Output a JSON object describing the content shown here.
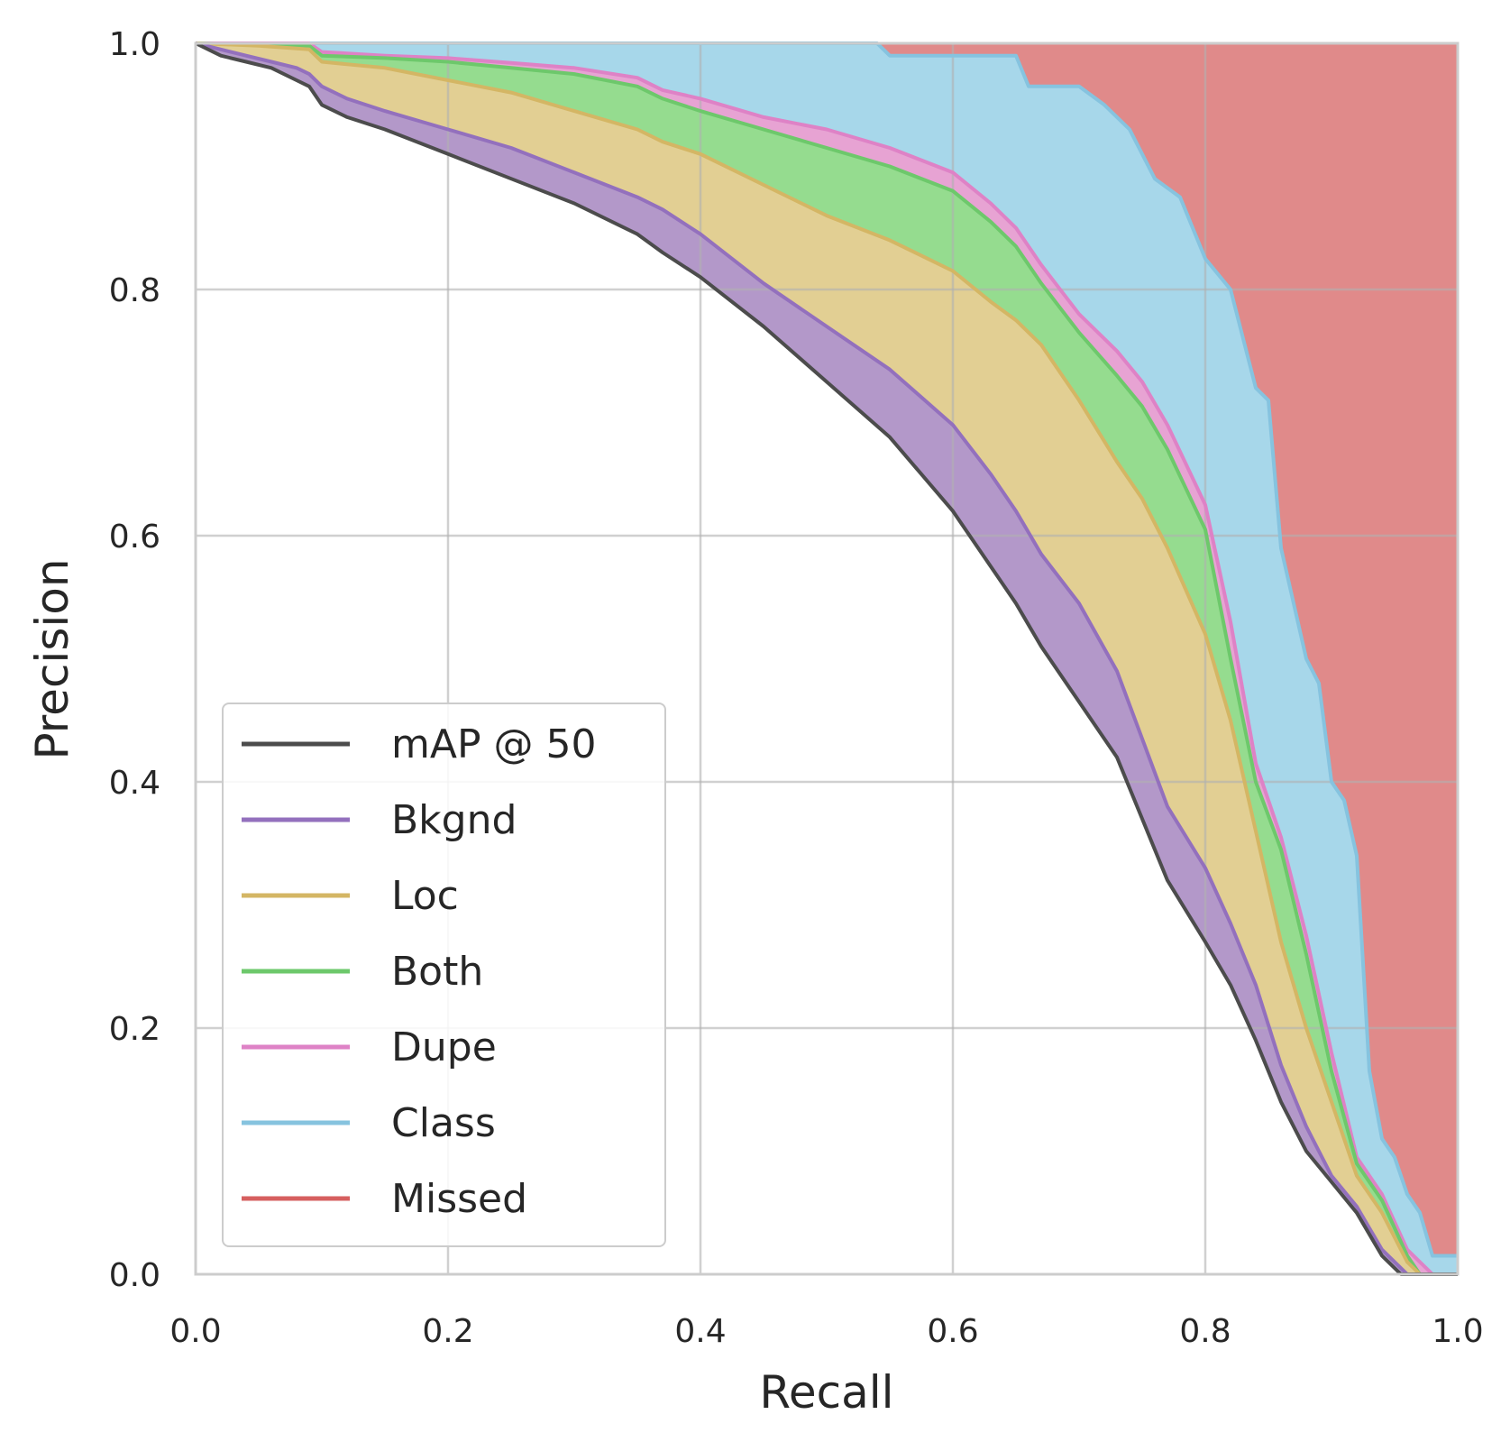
{
  "chart_data": {
    "type": "area",
    "title": "",
    "xlabel": "Recall",
    "ylabel": "Precision",
    "xlim": [
      0.0,
      1.0
    ],
    "ylim": [
      0.0,
      1.0
    ],
    "xticks": [
      "0.0",
      "0.2",
      "0.4",
      "0.6",
      "0.8",
      "1.0"
    ],
    "yticks": [
      "0.0",
      "0.2",
      "0.4",
      "0.6",
      "0.8",
      "1.0"
    ],
    "grid": true,
    "legend_position": "lower-left",
    "stacking": "cumulative",
    "series": [
      {
        "name": "mAP @ 50",
        "color": "#4c4c4c",
        "fill": null,
        "points": [
          [
            0.0,
            1.0
          ],
          [
            0.02,
            0.99
          ],
          [
            0.04,
            0.985
          ],
          [
            0.06,
            0.98
          ],
          [
            0.08,
            0.97
          ],
          [
            0.09,
            0.965
          ],
          [
            0.1,
            0.95
          ],
          [
            0.12,
            0.94
          ],
          [
            0.15,
            0.93
          ],
          [
            0.2,
            0.91
          ],
          [
            0.25,
            0.89
          ],
          [
            0.3,
            0.87
          ],
          [
            0.35,
            0.845
          ],
          [
            0.37,
            0.83
          ],
          [
            0.4,
            0.81
          ],
          [
            0.45,
            0.77
          ],
          [
            0.5,
            0.725
          ],
          [
            0.55,
            0.68
          ],
          [
            0.6,
            0.62
          ],
          [
            0.63,
            0.575
          ],
          [
            0.65,
            0.545
          ],
          [
            0.67,
            0.51
          ],
          [
            0.7,
            0.465
          ],
          [
            0.73,
            0.42
          ],
          [
            0.75,
            0.37
          ],
          [
            0.77,
            0.32
          ],
          [
            0.8,
            0.27
          ],
          [
            0.82,
            0.235
          ],
          [
            0.84,
            0.19
          ],
          [
            0.86,
            0.14
          ],
          [
            0.88,
            0.1
          ],
          [
            0.9,
            0.075
          ],
          [
            0.92,
            0.05
          ],
          [
            0.94,
            0.015
          ],
          [
            0.955,
            0.0
          ],
          [
            1.0,
            0.0
          ]
        ]
      },
      {
        "name": "Bkgnd",
        "color": "#9370bd",
        "fill": "#b398c9",
        "points": [
          [
            0.0,
            1.0
          ],
          [
            0.02,
            0.995
          ],
          [
            0.04,
            0.99
          ],
          [
            0.06,
            0.985
          ],
          [
            0.08,
            0.98
          ],
          [
            0.09,
            0.975
          ],
          [
            0.1,
            0.965
          ],
          [
            0.12,
            0.955
          ],
          [
            0.15,
            0.945
          ],
          [
            0.2,
            0.93
          ],
          [
            0.25,
            0.915
          ],
          [
            0.3,
            0.895
          ],
          [
            0.35,
            0.875
          ],
          [
            0.37,
            0.865
          ],
          [
            0.4,
            0.845
          ],
          [
            0.45,
            0.805
          ],
          [
            0.5,
            0.77
          ],
          [
            0.55,
            0.735
          ],
          [
            0.6,
            0.69
          ],
          [
            0.63,
            0.65
          ],
          [
            0.65,
            0.62
          ],
          [
            0.67,
            0.585
          ],
          [
            0.7,
            0.545
          ],
          [
            0.73,
            0.49
          ],
          [
            0.75,
            0.435
          ],
          [
            0.77,
            0.38
          ],
          [
            0.8,
            0.33
          ],
          [
            0.82,
            0.285
          ],
          [
            0.84,
            0.235
          ],
          [
            0.86,
            0.17
          ],
          [
            0.88,
            0.12
          ],
          [
            0.9,
            0.08
          ],
          [
            0.92,
            0.055
          ],
          [
            0.94,
            0.02
          ],
          [
            0.96,
            0.0
          ],
          [
            1.0,
            0.0
          ]
        ]
      },
      {
        "name": "Loc",
        "color": "#d4b664",
        "fill": "#e2cf93",
        "points": [
          [
            0.0,
            1.0
          ],
          [
            0.05,
            0.998
          ],
          [
            0.09,
            0.995
          ],
          [
            0.1,
            0.985
          ],
          [
            0.15,
            0.98
          ],
          [
            0.2,
            0.97
          ],
          [
            0.25,
            0.96
          ],
          [
            0.3,
            0.945
          ],
          [
            0.35,
            0.93
          ],
          [
            0.37,
            0.92
          ],
          [
            0.4,
            0.91
          ],
          [
            0.45,
            0.885
          ],
          [
            0.5,
            0.86
          ],
          [
            0.55,
            0.84
          ],
          [
            0.6,
            0.815
          ],
          [
            0.63,
            0.79
          ],
          [
            0.65,
            0.775
          ],
          [
            0.67,
            0.755
          ],
          [
            0.7,
            0.71
          ],
          [
            0.73,
            0.66
          ],
          [
            0.75,
            0.63
          ],
          [
            0.77,
            0.59
          ],
          [
            0.8,
            0.52
          ],
          [
            0.82,
            0.45
          ],
          [
            0.84,
            0.36
          ],
          [
            0.86,
            0.27
          ],
          [
            0.88,
            0.2
          ],
          [
            0.9,
            0.14
          ],
          [
            0.92,
            0.08
          ],
          [
            0.94,
            0.05
          ],
          [
            0.96,
            0.01
          ],
          [
            0.97,
            0.0
          ],
          [
            1.0,
            0.0
          ]
        ]
      },
      {
        "name": "Both",
        "color": "#6dc86b",
        "fill": "#95dc8f",
        "points": [
          [
            0.0,
            1.0
          ],
          [
            0.09,
            0.998
          ],
          [
            0.1,
            0.99
          ],
          [
            0.15,
            0.988
          ],
          [
            0.2,
            0.985
          ],
          [
            0.25,
            0.98
          ],
          [
            0.3,
            0.975
          ],
          [
            0.35,
            0.965
          ],
          [
            0.37,
            0.955
          ],
          [
            0.4,
            0.945
          ],
          [
            0.45,
            0.93
          ],
          [
            0.5,
            0.915
          ],
          [
            0.55,
            0.9
          ],
          [
            0.6,
            0.88
          ],
          [
            0.63,
            0.855
          ],
          [
            0.65,
            0.835
          ],
          [
            0.67,
            0.805
          ],
          [
            0.7,
            0.765
          ],
          [
            0.73,
            0.73
          ],
          [
            0.75,
            0.705
          ],
          [
            0.77,
            0.67
          ],
          [
            0.8,
            0.605
          ],
          [
            0.82,
            0.5
          ],
          [
            0.84,
            0.4
          ],
          [
            0.86,
            0.345
          ],
          [
            0.88,
            0.26
          ],
          [
            0.9,
            0.165
          ],
          [
            0.92,
            0.09
          ],
          [
            0.94,
            0.06
          ],
          [
            0.96,
            0.015
          ],
          [
            0.97,
            0.0
          ],
          [
            1.0,
            0.0
          ]
        ]
      },
      {
        "name": "Dupe",
        "color": "#de82c6",
        "fill": "#e7a3d3",
        "points": [
          [
            0.0,
            1.0
          ],
          [
            0.09,
            1.0
          ],
          [
            0.1,
            0.993
          ],
          [
            0.15,
            0.99
          ],
          [
            0.2,
            0.988
          ],
          [
            0.25,
            0.984
          ],
          [
            0.3,
            0.98
          ],
          [
            0.35,
            0.972
          ],
          [
            0.37,
            0.962
          ],
          [
            0.4,
            0.955
          ],
          [
            0.45,
            0.94
          ],
          [
            0.5,
            0.93
          ],
          [
            0.55,
            0.915
          ],
          [
            0.6,
            0.895
          ],
          [
            0.63,
            0.87
          ],
          [
            0.65,
            0.85
          ],
          [
            0.67,
            0.82
          ],
          [
            0.7,
            0.78
          ],
          [
            0.73,
            0.75
          ],
          [
            0.75,
            0.725
          ],
          [
            0.77,
            0.69
          ],
          [
            0.8,
            0.625
          ],
          [
            0.82,
            0.53
          ],
          [
            0.84,
            0.415
          ],
          [
            0.86,
            0.355
          ],
          [
            0.88,
            0.275
          ],
          [
            0.9,
            0.18
          ],
          [
            0.92,
            0.095
          ],
          [
            0.94,
            0.065
          ],
          [
            0.96,
            0.02
          ],
          [
            0.98,
            0.0
          ],
          [
            1.0,
            0.0
          ]
        ]
      },
      {
        "name": "Class",
        "color": "#86c3df",
        "fill": "#a7d7ea",
        "points": [
          [
            0.0,
            1.0
          ],
          [
            0.54,
            1.0
          ],
          [
            0.55,
            0.99
          ],
          [
            0.6,
            0.99
          ],
          [
            0.65,
            0.99
          ],
          [
            0.66,
            0.965
          ],
          [
            0.7,
            0.965
          ],
          [
            0.72,
            0.95
          ],
          [
            0.74,
            0.93
          ],
          [
            0.76,
            0.89
          ],
          [
            0.78,
            0.875
          ],
          [
            0.8,
            0.825
          ],
          [
            0.82,
            0.8
          ],
          [
            0.84,
            0.72
          ],
          [
            0.85,
            0.71
          ],
          [
            0.86,
            0.59
          ],
          [
            0.88,
            0.5
          ],
          [
            0.89,
            0.48
          ],
          [
            0.9,
            0.4
          ],
          [
            0.91,
            0.385
          ],
          [
            0.92,
            0.34
          ],
          [
            0.93,
            0.165
          ],
          [
            0.94,
            0.11
          ],
          [
            0.95,
            0.095
          ],
          [
            0.96,
            0.065
          ],
          [
            0.97,
            0.05
          ],
          [
            0.98,
            0.015
          ],
          [
            1.0,
            0.015
          ]
        ]
      },
      {
        "name": "Missed",
        "color": "#d65f5f",
        "fill": "#e08a8a",
        "points": [
          [
            0.0,
            1.0
          ],
          [
            1.0,
            1.0
          ]
        ]
      }
    ]
  }
}
